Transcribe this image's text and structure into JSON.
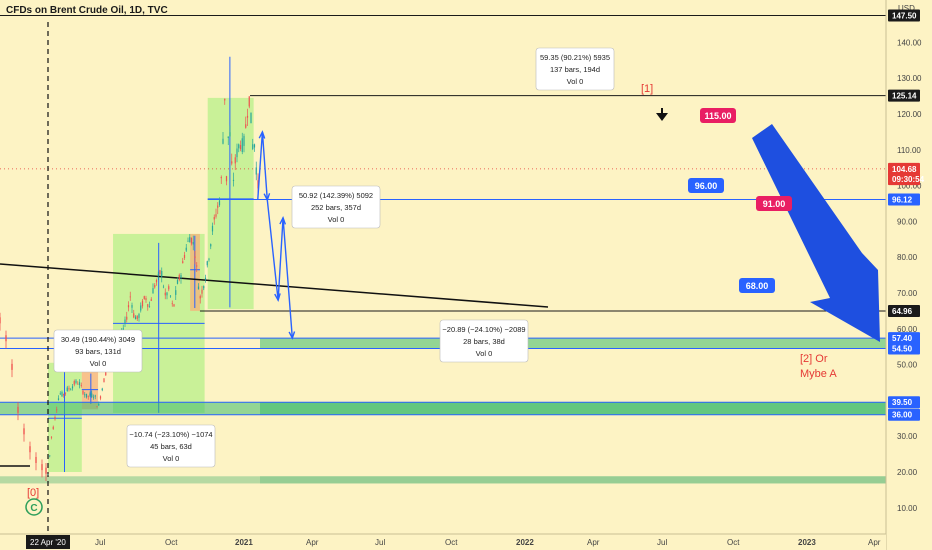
{
  "header": {
    "title": "CFDs on Brent Crude Oil, 1D, TVC",
    "currency": "USD"
  },
  "chart_data": {
    "type": "line",
    "title": "CFDs on Brent Crude Oil, 1D, TVC",
    "ylim": [
      5,
      150
    ],
    "yticks": [
      10,
      20,
      30,
      40,
      50,
      60,
      70,
      80,
      90,
      100,
      110,
      120,
      130,
      140
    ],
    "x_ticks": [
      "22 Apr '20",
      "Jul",
      "Oct",
      "2021",
      "Apr",
      "Jul",
      "Oct",
      "2022",
      "Apr",
      "Jul",
      "Oct",
      "2023",
      "Apr"
    ],
    "price_labels": [
      {
        "text": "147.50",
        "value": 147.5,
        "bg": "#1a1a1a",
        "fg": "#ffffff"
      },
      {
        "text": "125.14",
        "value": 125.14,
        "bg": "#1a1a1a",
        "fg": "#ffffff"
      },
      {
        "text": "104.68",
        "value": 104.68,
        "bg": "#e53935",
        "fg": "#ffffff"
      },
      {
        "text": "09:30:54",
        "value": 101.8,
        "bg": "#e53935",
        "fg": "#ffffff"
      },
      {
        "text": "96.12",
        "value": 96.12,
        "bg": "#2962ff",
        "fg": "#ffffff"
      },
      {
        "text": "64.96",
        "value": 64.96,
        "bg": "#1a1a1a",
        "fg": "#ffffff"
      },
      {
        "text": "57.40",
        "value": 57.4,
        "bg": "#2962ff",
        "fg": "#ffffff"
      },
      {
        "text": "54.50",
        "value": 54.5,
        "bg": "#2962ff",
        "fg": "#ffffff"
      },
      {
        "text": "39.50",
        "value": 39.5,
        "bg": "#2962ff",
        "fg": "#ffffff"
      },
      {
        "text": "36.00",
        "value": 36.0,
        "bg": "#2962ff",
        "fg": "#ffffff"
      }
    ],
    "measure_boxes": [
      {
        "line1": "30.49 (190.44%) 3049",
        "line2": "93 bars, 131d",
        "line3": "Vol 0"
      },
      {
        "line1": "−10.74 (−23.10%) −1074",
        "line2": "45 bars, 63d",
        "line3": "Vol 0"
      },
      {
        "line1": "50.92 (142.39%) 5092",
        "line2": "252 bars, 357d",
        "line3": "Vol 0"
      },
      {
        "line1": "−20.89 (−24.10%) −2089",
        "line2": "28 bars, 38d",
        "line3": "Vol 0"
      },
      {
        "line1": "59.35 (90.21%) 5935",
        "line2": "137 bars, 194d",
        "line3": "Vol 0"
      }
    ],
    "targets": [
      {
        "text": "115.00",
        "color": "#e91e63"
      },
      {
        "text": "96.00",
        "color": "#2962ff"
      },
      {
        "text": "91.00",
        "color": "#e91e63"
      },
      {
        "text": "68.00",
        "color": "#2962ff"
      }
    ],
    "wave_labels": {
      "w0": "[0]",
      "w1": "[1]",
      "w2a": "[2] Or",
      "w2b": "Mybe A",
      "c": "C"
    },
    "price_series": [
      [
        "2020-04-22",
        19.3
      ],
      [
        "2020-05-05",
        29.5
      ],
      [
        "2020-05-20",
        35.5
      ],
      [
        "2020-06-05",
        42.0
      ],
      [
        "2020-06-20",
        41.5
      ],
      [
        "2020-07-05",
        43.0
      ],
      [
        "2020-07-20",
        43.5
      ],
      [
        "2020-08-05",
        45.0
      ],
      [
        "2020-08-20",
        45.0
      ],
      [
        "2020-09-05",
        42.5
      ],
      [
        "2020-09-20",
        41.0
      ],
      [
        "2020-10-05",
        41.5
      ],
      [
        "2020-10-20",
        41.5
      ],
      [
        "2020-11-02",
        37.5
      ],
      [
        "2020-11-15",
        42.5
      ],
      [
        "2020-12-01",
        47.5
      ],
      [
        "2020-12-15",
        50.5
      ],
      [
        "2021-01-05",
        54.0
      ],
      [
        "2021-01-20",
        55.5
      ],
      [
        "2021-02-05",
        59.0
      ],
      [
        "2021-02-20",
        63.0
      ],
      [
        "2021-03-08",
        69.5
      ],
      [
        "2021-03-20",
        64.0
      ],
      [
        "2021-04-05",
        62.5
      ],
      [
        "2021-04-20",
        66.5
      ],
      [
        "2021-05-05",
        69.0
      ],
      [
        "2021-05-20",
        66.0
      ],
      [
        "2021-06-05",
        71.5
      ],
      [
        "2021-06-20",
        73.5
      ],
      [
        "2021-07-05",
        76.5
      ],
      [
        "2021-07-20",
        69.0
      ],
      [
        "2021-08-05",
        71.0
      ],
      [
        "2021-08-20",
        65.0
      ],
      [
        "2021-09-05",
        72.5
      ],
      [
        "2021-09-20",
        75.5
      ],
      [
        "2021-10-05",
        81.5
      ],
      [
        "2021-10-25",
        86.0
      ],
      [
        "2021-11-10",
        83.0
      ],
      [
        "2021-11-26",
        72.5
      ],
      [
        "2021-12-02",
        68.5
      ],
      [
        "2021-12-20",
        73.5
      ],
      [
        "2022-01-05",
        80.0
      ],
      [
        "2022-01-20",
        88.0
      ],
      [
        "2022-02-05",
        93.0
      ],
      [
        "2022-02-20",
        97.0
      ],
      [
        "2022-03-08",
        125.0
      ],
      [
        "2022-03-16",
        98.0
      ],
      [
        "2022-03-24",
        120.0
      ],
      [
        "2022-04-08",
        100.0
      ],
      [
        "2022-04-20",
        108.0
      ],
      [
        "2022-05-05",
        112.0
      ],
      [
        "2022-05-20",
        111.0
      ],
      [
        "2022-06-08",
        123.5
      ],
      [
        "2022-06-14",
        125.0
      ],
      [
        "2022-06-22",
        111.0
      ],
      [
        "2022-07-01",
        112.0
      ],
      [
        "2022-07-14",
        99.0
      ],
      [
        "2022-07-20",
        104.7
      ]
    ],
    "projection_path": [
      [
        "2022-07-14",
        96.0
      ],
      [
        "2022-08-01",
        115.0
      ],
      [
        "2022-08-20",
        96.0
      ],
      [
        "2022-10-01",
        68.0
      ],
      [
        "2022-10-20",
        91.0
      ],
      [
        "2022-11-25",
        57.4
      ]
    ]
  }
}
